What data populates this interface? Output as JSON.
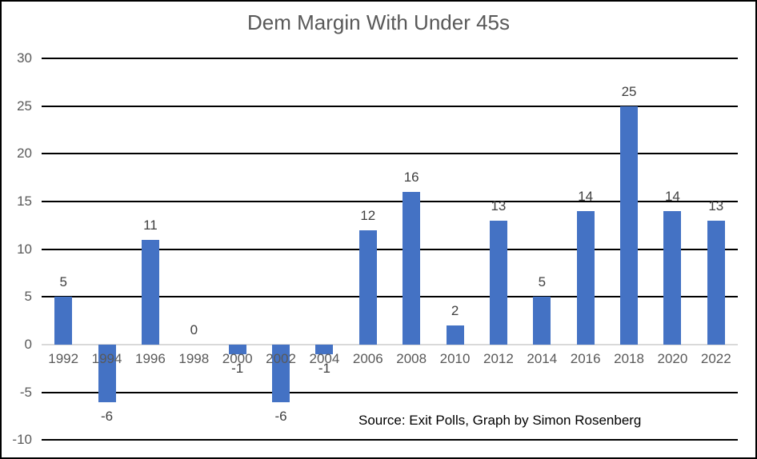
{
  "chart_data": {
    "type": "bar",
    "title": "Dem Margin With Under 45s",
    "categories": [
      "1992",
      "1994",
      "1996",
      "1998",
      "2000",
      "2002",
      "2004",
      "2006",
      "2008",
      "2010",
      "2012",
      "2014",
      "2016",
      "2018",
      "2020",
      "2022"
    ],
    "values": [
      5,
      -6,
      11,
      0,
      -1,
      -6,
      -1,
      12,
      16,
      2,
      13,
      5,
      14,
      25,
      14,
      13
    ],
    "data_labels": [
      "5",
      "-6",
      "11",
      "0",
      "-1",
      "-6",
      "-1",
      "12",
      "16",
      "2",
      "13",
      "5",
      "14",
      "25",
      "14",
      "13"
    ],
    "yticks": [
      30,
      25,
      20,
      15,
      10,
      5,
      0,
      -5,
      -10
    ],
    "ylim": [
      -10,
      30
    ],
    "xlabel": "",
    "ylabel": "",
    "legend": "none",
    "grid": "horizontal-major",
    "source_note": "Source: Exit Polls, Graph by Simon Rosenberg",
    "colors": {
      "bar": "#4472C4",
      "gridline": "#000000",
      "zero_line": "#D9D9D9",
      "axis_text": "#595959",
      "data_label_text": "#404040",
      "title_text": "#595959",
      "source_text": "#000000",
      "frame_border": "#000000",
      "background": "#FFFFFF"
    }
  }
}
